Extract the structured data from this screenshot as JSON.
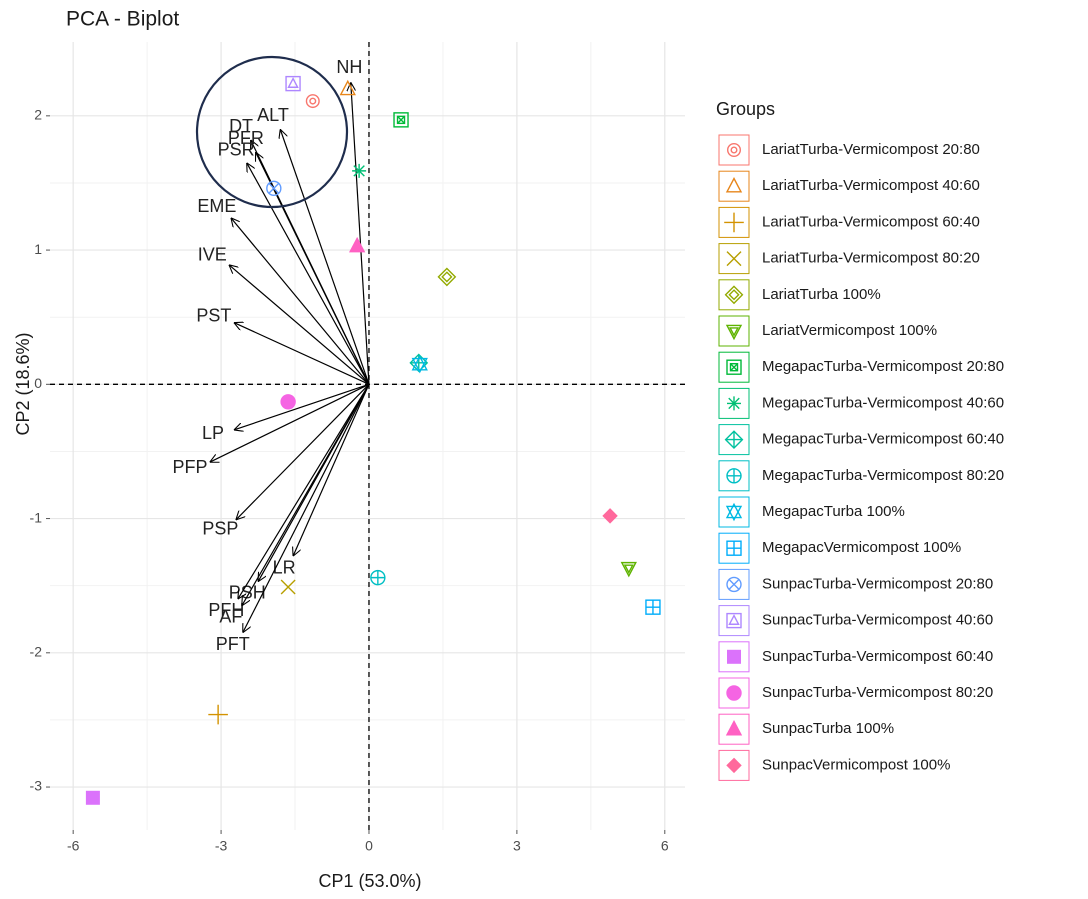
{
  "chart_data": {
    "type": "scatter",
    "title": "PCA - Biplot",
    "x_label": "CP1 (53.0%)",
    "y_label": "CP2 (18.6%)",
    "xlim": [
      -6.47,
      6.41
    ],
    "ylim": [
      -3.32,
      2.55
    ],
    "xticks": [
      -6,
      -3,
      0,
      3,
      6
    ],
    "yticks": [
      -3,
      -2,
      -1,
      0,
      1,
      2
    ],
    "grid": true,
    "legend_title": "Groups",
    "legend_position": "right",
    "series": [
      {
        "name": "LariatTurba-Vermicompost 20:80",
        "color": "#F8766D",
        "marker": "circle-dot",
        "x": [
          -1.14
        ],
        "values": [
          2.11
        ]
      },
      {
        "name": "LariatTurba-Vermicompost 40:60",
        "color": "#E7861B",
        "marker": "triangle-open",
        "x": [
          -0.43
        ],
        "values": [
          2.2
        ]
      },
      {
        "name": "LariatTurba-Vermicompost 60:40",
        "color": "#D39200",
        "marker": "plus",
        "x": [
          -3.06
        ],
        "values": [
          -2.46
        ]
      },
      {
        "name": "LariatTurba-Vermicompost 80:20",
        "color": "#B79F00",
        "marker": "cross",
        "x": [
          -1.64
        ],
        "values": [
          -1.51
        ]
      },
      {
        "name": "LariatTurba 100%",
        "color": "#93AA00",
        "marker": "diamond-open",
        "x": [
          1.58
        ],
        "values": [
          0.8
        ]
      },
      {
        "name": "LariatVermicompost 100%",
        "color": "#5EB300",
        "marker": "triangle-down-open",
        "x": [
          5.27
        ],
        "values": [
          -1.37
        ]
      },
      {
        "name": "MegapacTurba-Vermicompost 20:80",
        "color": "#00BA38",
        "marker": "square-cross",
        "x": [
          0.65
        ],
        "values": [
          1.97
        ]
      },
      {
        "name": "MegapacTurba-Vermicompost 40:60",
        "color": "#00BF74",
        "marker": "asterisk",
        "x": [
          -0.2
        ],
        "values": [
          1.59
        ]
      },
      {
        "name": "MegapacTurba-Vermicompost 60:40",
        "color": "#00C19F",
        "marker": "diamond-plus",
        "x": [
          1.01
        ],
        "values": [
          0.16
        ]
      },
      {
        "name": "MegapacTurba-Vermicompost 80:20",
        "color": "#00BFC4",
        "marker": "circle-plus",
        "x": [
          0.18
        ],
        "values": [
          -1.44
        ]
      },
      {
        "name": "MegapacTurba 100%",
        "color": "#00B9E3",
        "marker": "star-of-david",
        "x": [
          1.03
        ],
        "values": [
          0.15
        ]
      },
      {
        "name": "MegapacVermicompost 100%",
        "color": "#00ADFA",
        "marker": "square-plus",
        "x": [
          5.76
        ],
        "values": [
          -1.66
        ]
      },
      {
        "name": "SunpacTurba-Vermicompost 20:80",
        "color": "#619CFF",
        "marker": "circle-cross",
        "x": [
          -1.93
        ],
        "values": [
          1.46
        ]
      },
      {
        "name": "SunpacTurba-Vermicompost 40:60",
        "color": "#AE87FF",
        "marker": "square-triangle",
        "x": [
          -1.54
        ],
        "values": [
          2.24
        ]
      },
      {
        "name": "SunpacTurba-Vermicompost 60:40",
        "color": "#DB72FB",
        "marker": "square",
        "x": [
          -5.6
        ],
        "values": [
          -3.08
        ]
      },
      {
        "name": "SunpacTurba-Vermicompost 80:20",
        "color": "#F564E3",
        "marker": "circle",
        "x": [
          -1.64
        ],
        "values": [
          -0.13
        ]
      },
      {
        "name": "SunpacTurba 100%",
        "color": "#FF61C3",
        "marker": "triangle",
        "x": [
          -0.24
        ],
        "values": [
          1.03
        ]
      },
      {
        "name": "SunpacVermicompost 100%",
        "color": "#FF699C",
        "marker": "diamond",
        "x": [
          4.89
        ],
        "values": [
          -0.98
        ]
      }
    ],
    "loadings": [
      {
        "name": "NH",
        "x": -0.37,
        "y": 2.25
      },
      {
        "name": "ALT",
        "x": -1.8,
        "y": 1.9
      },
      {
        "name": "DT",
        "x": -2.4,
        "y": 1.82
      },
      {
        "name": "PFR",
        "x": -2.3,
        "y": 1.73
      },
      {
        "name": "PSR",
        "x": -2.48,
        "y": 1.65
      },
      {
        "name": "EME",
        "x": -2.8,
        "y": 1.24
      },
      {
        "name": "IVE",
        "x": -2.84,
        "y": 0.89
      },
      {
        "name": "PST",
        "x": -2.74,
        "y": 0.46
      },
      {
        "name": "LP",
        "x": -2.74,
        "y": -0.34
      },
      {
        "name": "PFP",
        "x": -3.23,
        "y": -0.58
      },
      {
        "name": "PSP",
        "x": -2.7,
        "y": -1.01
      },
      {
        "name": "LR",
        "x": -1.54,
        "y": -1.28
      },
      {
        "name": "PSH",
        "x": -2.25,
        "y": -1.47
      },
      {
        "name": "PFH",
        "x": -2.66,
        "y": -1.6
      },
      {
        "name": "AF",
        "x": -2.58,
        "y": -1.65
      },
      {
        "name": "PFT",
        "x": -2.56,
        "y": -1.85
      }
    ]
  }
}
